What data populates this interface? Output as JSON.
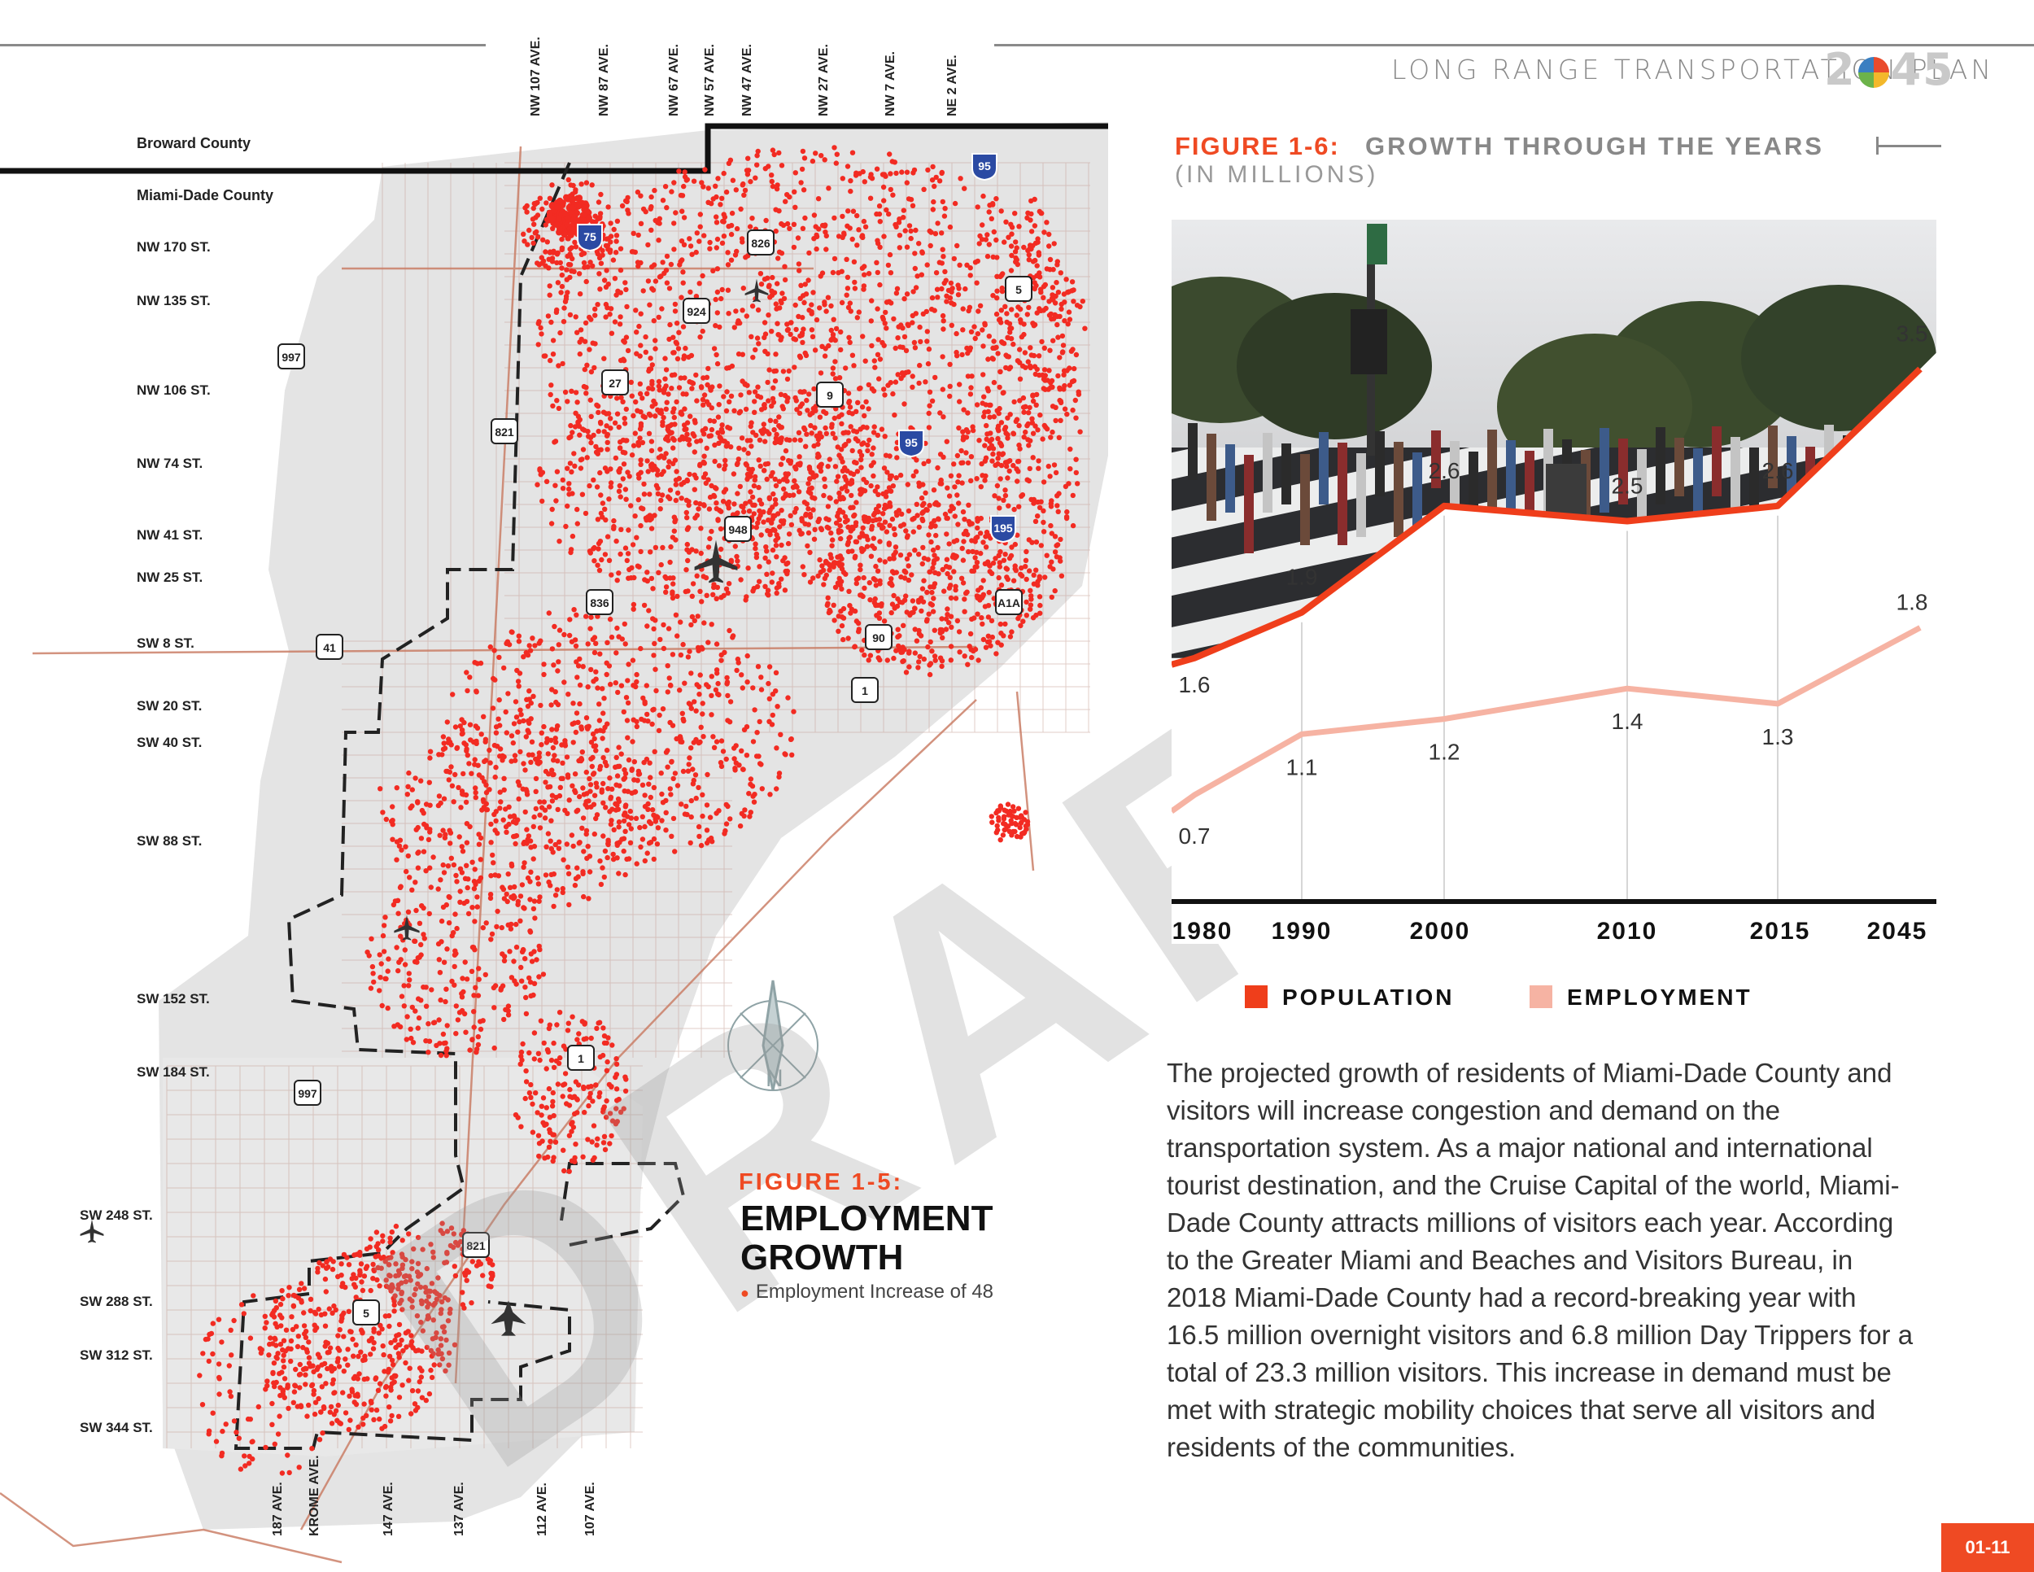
{
  "header": {
    "plan_title": "LONG RANGE TRANSPORTATION PLAN",
    "plan_year_prefix": "2",
    "plan_year_suffix": "45"
  },
  "map": {
    "counties": [
      "Broward County",
      "Miami-Dade County"
    ],
    "top_avenues": [
      "NW 107 AVE.",
      "NW 87 AVE.",
      "NW 67 AVE.",
      "NW 57 AVE.",
      "NW 47 AVE.",
      "NW 27 AVE.",
      "NW 7 AVE.",
      "NE 2 AVE."
    ],
    "streets": [
      "NW 170 ST.",
      "NW 135 ST.",
      "NW 106 ST.",
      "NW 74 ST.",
      "NW 41 ST.",
      "NW 25 ST.",
      "SW 8 ST.",
      "SW 20 ST.",
      "SW 40 ST.",
      "SW 88 ST.",
      "SW 152 ST.",
      "SW 184 ST.",
      "SW 248 ST.",
      "SW 288 ST.",
      "SW 312 ST.",
      "SW 344 ST."
    ],
    "bottom_avenues": [
      "187 AVE.",
      "KROME AVE.",
      "147 AVE.",
      "137 AVE.",
      "112 AVE.",
      "107 AVE."
    ],
    "shields": [
      "95",
      "75",
      "826",
      "924",
      "5",
      "997",
      "27",
      "9",
      "821",
      "95",
      "948",
      "195",
      "836",
      "A1A",
      "41",
      "90",
      "1",
      "1",
      "997",
      "821",
      "5"
    ],
    "watermark": "DRAFT",
    "compass_letter": "N"
  },
  "figure5": {
    "number": "FIGURE 1-5:",
    "title": "EMPLOYMENT GROWTH",
    "legend": "Employment Increase of 48"
  },
  "figure6": {
    "number": "FIGURE 1-6:",
    "title": "GROWTH THROUGH THE YEARS",
    "subtitle": "(IN MILLIONS)"
  },
  "chart_data": {
    "type": "line",
    "title": "GROWTH THROUGH THE YEARS",
    "subtitle": "(IN MILLIONS)",
    "categories": [
      "1980",
      "1990",
      "2000",
      "2010",
      "2015",
      "2045"
    ],
    "series": [
      {
        "name": "POPULATION",
        "color": "#ef3e1b",
        "values": [
          1.6,
          1.9,
          2.6,
          2.5,
          2.6,
          3.5
        ]
      },
      {
        "name": "EMPLOYMENT",
        "color": "#f6b3a3",
        "values": [
          0.7,
          1.1,
          1.2,
          1.4,
          1.3,
          1.8
        ]
      }
    ],
    "ylim": [
      0,
      4
    ],
    "legend_position": "bottom"
  },
  "body": {
    "paragraph": "The projected growth of residents of Miami-Dade County and visitors will increase congestion and demand on the transportation system. As a major national and international tourist destination, and the Cruise Capital of the world, Miami-Dade County attracts millions of visitors each year. According to the Greater Miami and Beaches and Visitors Bureau, in 2018 Miami-Dade County had a record-breaking year with 16.5 million overnight visitors and 6.8 million Day Trippers for a total of 23.3 million visitors. This increase in demand must be met with strategic mobility choices that serve all visitors and residents of the communities."
  },
  "footer": {
    "page_number": "01-11"
  },
  "colors": {
    "accent": "#ef4a23",
    "population": "#ef3e1b",
    "employment": "#f6b3a3",
    "map_dots": "#f22b22",
    "land": "#e4e4e4"
  }
}
